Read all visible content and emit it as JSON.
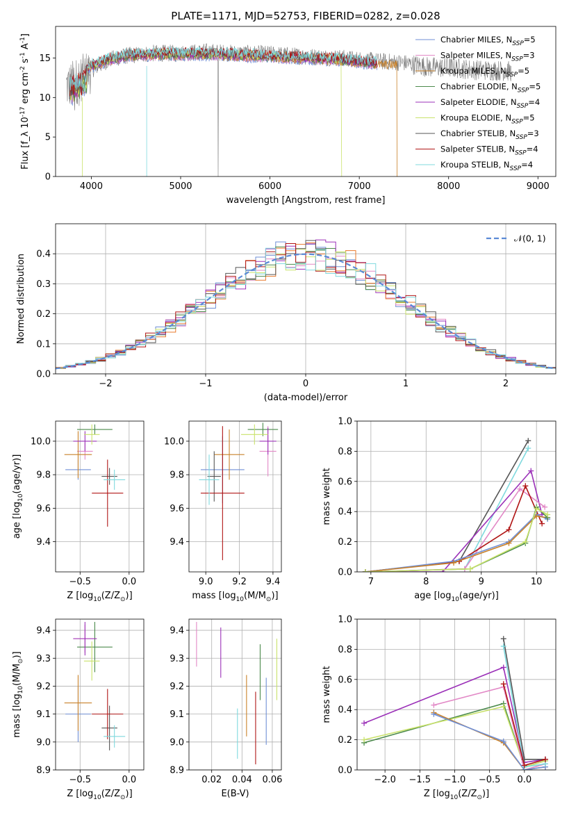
{
  "figure": {
    "title": "PLATE=1171, MJD=52753, FIBERID=0282, z=0.028"
  },
  "palette": {
    "Chabrier MILES": "#6f8fd6",
    "Salpeter MILES": "#e288c6",
    "Kroupa MILES": "#c9822a",
    "Chabrier ELODIE": "#4b8a4b",
    "Salpeter ELODIE": "#9b30b8",
    "Kroupa ELODIE": "#c9e26a",
    "Chabrier STELIB": "#555555",
    "Salpeter STELIB": "#b01515",
    "Kroupa STELIB": "#7fd9de",
    "extra1": "#e8782a",
    "extra2": "#d0d0d0"
  },
  "chart_data": [
    {
      "id": "spectrum",
      "type": "line",
      "xlabel": "wavelength [Angstrom, rest frame]",
      "ylabel": "Flux [f_λ 10^-17 erg cm^-2 s^-1 A^-1]",
      "xlim": [
        3600,
        9200
      ],
      "ylim": [
        0,
        19
      ],
      "xticks": [
        "4000",
        "5000",
        "6000",
        "7000",
        "8000",
        "9000"
      ],
      "yticks": [
        "0",
        "5",
        "10",
        "15"
      ],
      "legend": [
        "Chabrier MILES, N_SSP=5",
        "Salpeter MILES, N_SSP=3",
        "Kroupa MILES, N_SSP=5",
        "Chabrier ELODIE, N_SSP=5",
        "Salpeter ELODIE, N_SSP=4",
        "Kroupa ELODIE, N_SSP=5",
        "Chabrier STELIB, N_SSP=3",
        "Salpeter STELIB, N_SSP=4",
        "Kroupa STELIB, N_SSP=4"
      ],
      "data_curve": {
        "name": "data",
        "x": [
          3750,
          3900,
          4000,
          4200,
          4400,
          4700,
          5000,
          5300,
          5600,
          6000,
          6400,
          6800,
          7200,
          7500,
          7800,
          8000,
          8300,
          8600,
          8700
        ],
        "y": [
          11.5,
          12.5,
          13.5,
          14.8,
          15.3,
          15.6,
          15.6,
          15.8,
          15.6,
          15.5,
          15.2,
          15.0,
          14.6,
          14.4,
          13.8,
          13.8,
          13.5,
          13.4,
          13.3
        ]
      },
      "model_curve": {
        "x": [
          3750,
          3900,
          4000,
          4200,
          4400,
          4700,
          5000,
          5300,
          5600,
          6000,
          6400,
          6800,
          7200
        ],
        "y": [
          12.0,
          13.0,
          14.0,
          14.8,
          15.3,
          15.5,
          15.5,
          15.5,
          15.4,
          15.2,
          15.0,
          14.8,
          14.3
        ]
      }
    },
    {
      "id": "residuals",
      "type": "step",
      "xlabel": "(data-model)/error",
      "ylabel": "Normed distribution",
      "xlim": [
        -2.5,
        2.5
      ],
      "ylim": [
        0,
        0.5
      ],
      "xticks": [
        "−2",
        "−1",
        "0",
        "1",
        "2"
      ],
      "yticks": [
        "0.0",
        "0.1",
        "0.2",
        "0.3",
        "0.4"
      ],
      "legend": [
        "𝒩(0, 1)"
      ],
      "gaussian": {
        "mu": 0,
        "sigma": 1
      }
    },
    {
      "id": "age_vs_Z",
      "type": "errorbar",
      "xlabel": "Z [log10(Z/Z☉)]",
      "ylabel": "age [log10(age/yr)]",
      "xlim": [
        -0.75,
        0.15
      ],
      "ylim": [
        9.22,
        10.12
      ],
      "xticks": [
        "−0.5",
        "0.0"
      ],
      "yticks": [
        "9.4",
        "9.6",
        "9.8",
        "10.0"
      ],
      "points": [
        {
          "series": "Chabrier MILES",
          "x": -0.52,
          "xerr": 0.13,
          "y": 9.83,
          "yerr": 0.06
        },
        {
          "series": "Salpeter MILES",
          "x": -0.45,
          "xerr": 0.08,
          "y": 9.94,
          "yerr": 0.05
        },
        {
          "series": "Kroupa MILES",
          "x": -0.52,
          "xerr": 0.14,
          "y": 9.92,
          "yerr": 0.14
        },
        {
          "series": "Chabrier ELODIE",
          "x": -0.35,
          "xerr": 0.18,
          "y": 10.07,
          "yerr": 0.03
        },
        {
          "series": "Salpeter ELODIE",
          "x": -0.45,
          "xerr": 0.12,
          "y": 10.0,
          "yerr": 0.06
        },
        {
          "series": "Kroupa ELODIE",
          "x": -0.38,
          "xerr": 0.08,
          "y": 10.04,
          "yerr": 0.06
        },
        {
          "series": "Chabrier STELIB",
          "x": -0.2,
          "xerr": 0.08,
          "y": 9.79,
          "yerr": 0.05
        },
        {
          "series": "Salpeter STELIB",
          "x": -0.22,
          "xerr": 0.16,
          "y": 9.69,
          "yerr": 0.2
        },
        {
          "series": "Kroupa STELIB",
          "x": -0.15,
          "xerr": 0.11,
          "y": 9.77,
          "yerr": 0.06
        }
      ]
    },
    {
      "id": "age_vs_mass",
      "type": "errorbar",
      "xlabel": "mass [log10(M/M☉)]",
      "ylabel": "",
      "xlim": [
        8.9,
        9.45
      ],
      "ylim": [
        9.22,
        10.12
      ],
      "xticks": [
        "9.0",
        "9.2",
        "9.4"
      ],
      "yticks": [
        "9.4",
        "9.6",
        "9.8",
        "10.0"
      ],
      "points": [
        {
          "series": "Chabrier MILES",
          "x": 9.1,
          "xerr": 0.13,
          "y": 9.83,
          "yerr": 0.2
        },
        {
          "series": "Salpeter MILES",
          "x": 9.37,
          "xerr": 0.05,
          "y": 9.94,
          "yerr": 0.15
        },
        {
          "series": "Kroupa MILES",
          "x": 9.14,
          "xerr": 0.09,
          "y": 9.92,
          "yerr": 0.15
        },
        {
          "series": "Chabrier ELODIE",
          "x": 9.34,
          "xerr": 0.09,
          "y": 10.07,
          "yerr": 0.04
        },
        {
          "series": "Salpeter ELODIE",
          "x": 9.37,
          "xerr": 0.05,
          "y": 10.0,
          "yerr": 0.08
        },
        {
          "series": "Kroupa ELODIE",
          "x": 9.29,
          "xerr": 0.08,
          "y": 10.04,
          "yerr": 0.06
        },
        {
          "series": "Chabrier STELIB",
          "x": 9.05,
          "xerr": 0.04,
          "y": 9.79,
          "yerr": 0.15
        },
        {
          "series": "Salpeter STELIB",
          "x": 9.1,
          "xerr": 0.13,
          "y": 9.69,
          "yerr": 0.4
        },
        {
          "series": "Kroupa STELIB",
          "x": 9.02,
          "xerr": 0.06,
          "y": 9.77,
          "yerr": 0.15
        }
      ]
    },
    {
      "id": "weight_vs_age",
      "type": "line",
      "xlabel": "age [log10(age/yr)]",
      "ylabel": "mass weight",
      "xlim": [
        6.75,
        10.35
      ],
      "ylim": [
        0,
        1.0
      ],
      "xticks": [
        "7",
        "8",
        "9",
        "10"
      ],
      "yticks": [
        "0.0",
        "0.2",
        "0.4",
        "0.6",
        "0.8",
        "1.0"
      ],
      "series": [
        {
          "series": "Chabrier STELIB",
          "x": [
            6.9,
            8.6,
            9.85
          ],
          "y": [
            0.0,
            0.07,
            0.87
          ]
        },
        {
          "series": "Kroupa STELIB",
          "x": [
            6.9,
            8.7,
            9.85
          ],
          "y": [
            0.0,
            0.02,
            0.82
          ]
        },
        {
          "series": "Salpeter ELODIE",
          "x": [
            6.9,
            8.3,
            9.9,
            10.1
          ],
          "y": [
            0.0,
            0.0,
            0.67,
            0.38
          ]
        },
        {
          "series": "Salpeter MILES",
          "x": [
            6.9,
            8.7,
            9.7,
            10.15
          ],
          "y": [
            0.0,
            0.02,
            0.55,
            0.43
          ]
        },
        {
          "series": "Salpeter STELIB",
          "x": [
            6.9,
            8.6,
            9.5,
            9.8,
            10.1
          ],
          "y": [
            0.0,
            0.07,
            0.28,
            0.57,
            0.32
          ]
        },
        {
          "series": "Chabrier MILES",
          "x": [
            6.9,
            8.5,
            9.5,
            10.0,
            10.2
          ],
          "y": [
            0.0,
            0.07,
            0.2,
            0.38,
            0.35
          ]
        },
        {
          "series": "Kroupa MILES",
          "x": [
            6.9,
            8.5,
            9.5,
            10.0,
            10.2
          ],
          "y": [
            0.0,
            0.06,
            0.19,
            0.37,
            0.36
          ]
        },
        {
          "series": "Chabrier ELODIE",
          "x": [
            6.9,
            8.8,
            9.8,
            10.0,
            10.2
          ],
          "y": [
            0.0,
            0.02,
            0.19,
            0.43,
            0.36
          ]
        },
        {
          "series": "Kroupa ELODIE",
          "x": [
            6.9,
            8.8,
            9.8,
            10.0,
            10.2
          ],
          "y": [
            0.0,
            0.02,
            0.2,
            0.42,
            0.38
          ]
        }
      ]
    },
    {
      "id": "mass_vs_Z",
      "type": "errorbar",
      "xlabel": "Z [log10(Z/Z☉)]",
      "ylabel": "mass [log10(M/M☉)]",
      "xlim": [
        -0.75,
        0.15
      ],
      "ylim": [
        8.9,
        9.44
      ],
      "xticks": [
        "−0.5",
        "0.0"
      ],
      "yticks": [
        "8.9",
        "9.0",
        "9.1",
        "9.2",
        "9.3",
        "9.4"
      ],
      "points": [
        {
          "series": "Chabrier MILES",
          "x": -0.52,
          "xerr": 0.13,
          "y": 9.1,
          "yerr": 0.1
        },
        {
          "series": "Salpeter MILES",
          "x": -0.45,
          "xerr": 0.12,
          "y": 9.37,
          "yerr": 0.05
        },
        {
          "series": "Kroupa MILES",
          "x": -0.52,
          "xerr": 0.14,
          "y": 9.14,
          "yerr": 0.1
        },
        {
          "series": "Chabrier ELODIE",
          "x": -0.35,
          "xerr": 0.18,
          "y": 9.34,
          "yerr": 0.09
        },
        {
          "series": "Salpeter ELODIE",
          "x": -0.45,
          "xerr": 0.12,
          "y": 9.37,
          "yerr": 0.06
        },
        {
          "series": "Kroupa ELODIE",
          "x": -0.38,
          "xerr": 0.08,
          "y": 9.29,
          "yerr": 0.07
        },
        {
          "series": "Chabrier STELIB",
          "x": -0.2,
          "xerr": 0.08,
          "y": 9.05,
          "yerr": 0.08
        },
        {
          "series": "Salpeter STELIB",
          "x": -0.22,
          "xerr": 0.16,
          "y": 9.1,
          "yerr": 0.09
        },
        {
          "series": "Kroupa STELIB",
          "x": -0.15,
          "xerr": 0.11,
          "y": 9.02,
          "yerr": 0.04
        }
      ]
    },
    {
      "id": "mass_vs_ebv",
      "type": "errorbar",
      "xlabel": "E(B-V)",
      "ylabel": "",
      "xlim": [
        0.005,
        0.066
      ],
      "ylim": [
        8.9,
        9.44
      ],
      "xticks": [
        "0.02",
        "0.04",
        "0.06"
      ],
      "yticks": [
        "8.9",
        "9.0",
        "9.1",
        "9.2",
        "9.3",
        "9.4"
      ],
      "points": [
        {
          "series": "Salpeter MILES",
          "x": 0.01,
          "y": 9.35,
          "yerr": 0.08
        },
        {
          "series": "Salpeter ELODIE",
          "x": 0.026,
          "y": 9.32,
          "yerr": 0.09
        },
        {
          "series": "Kroupa STELIB",
          "x": 0.037,
          "y": 9.03,
          "yerr": 0.09
        },
        {
          "series": "Kroupa MILES",
          "x": 0.043,
          "y": 9.13,
          "yerr": 0.11
        },
        {
          "series": "Salpeter STELIB",
          "x": 0.049,
          "y": 9.05,
          "yerr": 0.13
        },
        {
          "series": "Chabrier ELODIE",
          "x": 0.052,
          "y": 9.25,
          "yerr": 0.1
        },
        {
          "series": "Chabrier MILES",
          "x": 0.056,
          "y": 9.11,
          "yerr": 0.12
        },
        {
          "series": "Kroupa ELODIE",
          "x": 0.063,
          "y": 9.26,
          "yerr": 0.11
        }
      ]
    },
    {
      "id": "weight_vs_Z",
      "type": "line",
      "xlabel": "Z [log10(Z/Z☉)]",
      "ylabel": "mass weight",
      "xlim": [
        -2.4,
        0.45
      ],
      "ylim": [
        0,
        1.0
      ],
      "xticks": [
        "−2.0",
        "−1.5",
        "−1.0",
        "−0.5",
        "0.0"
      ],
      "yticks": [
        "0.0",
        "0.2",
        "0.4",
        "0.6",
        "0.8",
        "1.0"
      ],
      "series": [
        {
          "series": "Salpeter ELODIE",
          "x": [
            -2.3,
            -0.3,
            0.0,
            0.3
          ],
          "y": [
            0.31,
            0.68,
            0.05,
            0.07
          ]
        },
        {
          "series": "Chabrier ELODIE",
          "x": [
            -2.3,
            -0.3,
            0.0,
            0.3
          ],
          "y": [
            0.18,
            0.44,
            0.02,
            0.06
          ]
        },
        {
          "series": "Kroupa ELODIE",
          "x": [
            -2.3,
            -0.3,
            0.0,
            0.3
          ],
          "y": [
            0.2,
            0.42,
            0.02,
            0.06
          ]
        },
        {
          "series": "Salpeter MILES",
          "x": [
            -1.3,
            -0.3,
            0.0,
            0.3
          ],
          "y": [
            0.43,
            0.55,
            0.0,
            0.04
          ]
        },
        {
          "series": "Kroupa MILES",
          "x": [
            -1.3,
            -0.3,
            0.0,
            0.3
          ],
          "y": [
            0.38,
            0.18,
            0.0,
            0.02
          ]
        },
        {
          "series": "Chabrier MILES",
          "x": [
            -1.3,
            -0.3,
            0.0,
            0.3
          ],
          "y": [
            0.37,
            0.19,
            0.0,
            0.02
          ]
        },
        {
          "series": "Chabrier STELIB",
          "x": [
            -0.3,
            0.0,
            0.3
          ],
          "y": [
            0.87,
            0.07,
            0.07
          ]
        },
        {
          "series": "Kroupa STELIB",
          "x": [
            -0.3,
            0.0,
            0.3
          ],
          "y": [
            0.82,
            0.02,
            0.04
          ]
        },
        {
          "series": "Salpeter STELIB",
          "x": [
            -0.3,
            0.0,
            0.3
          ],
          "y": [
            0.57,
            0.03,
            0.07
          ]
        }
      ]
    }
  ]
}
